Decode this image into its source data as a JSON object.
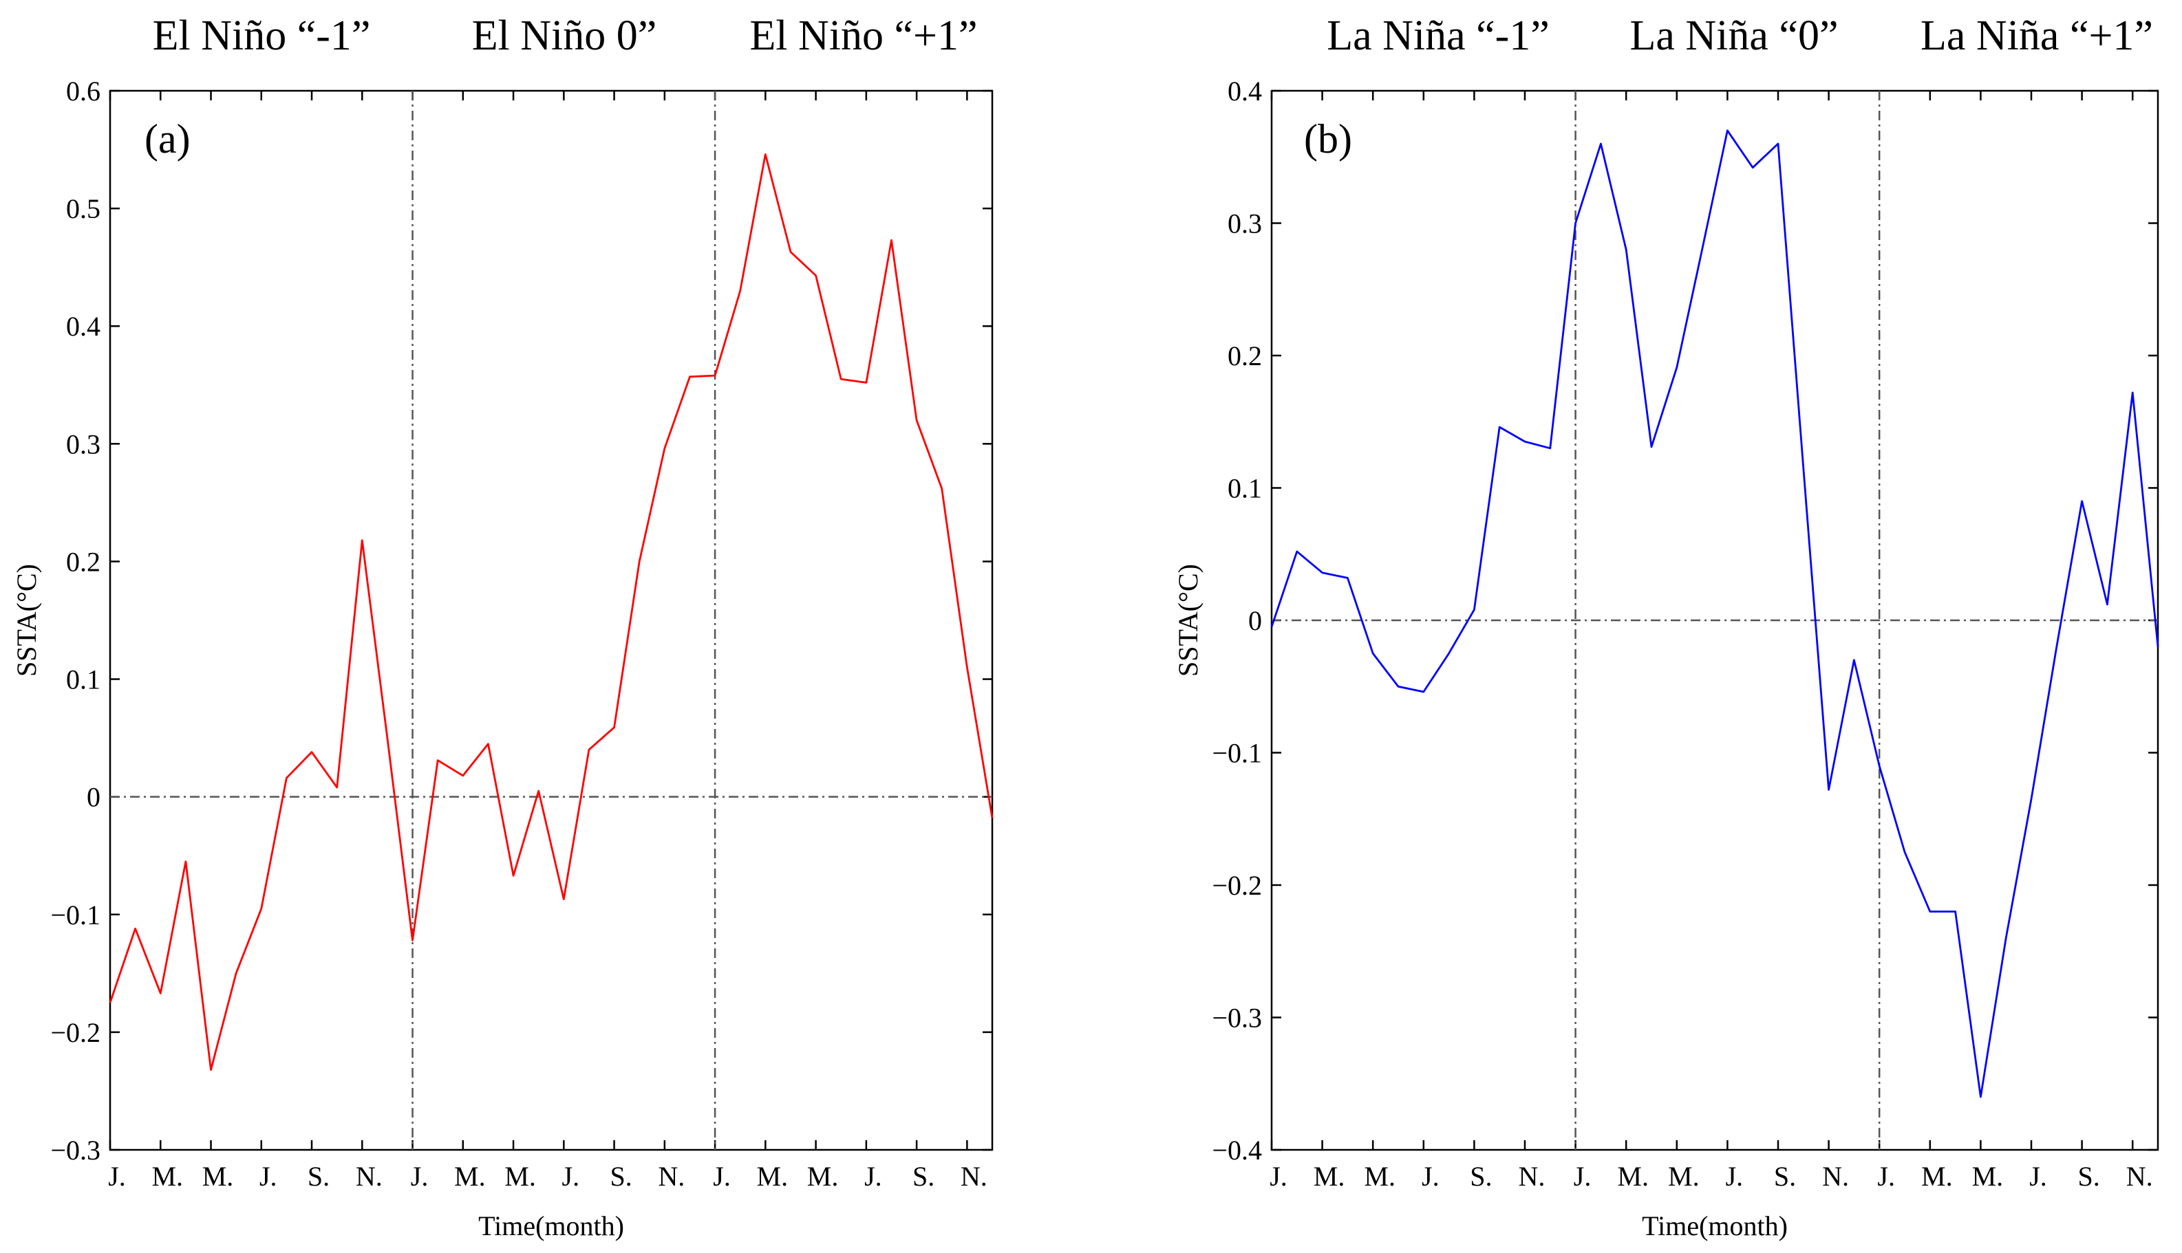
{
  "chart_data": [
    {
      "type": "line",
      "panel_label": "(a)",
      "phase_labels": [
        "El Niño “-1”",
        "El Niño 0”",
        "El Niño “+1”"
      ],
      "xlabel": "Time(month)",
      "ylabel": "SSTA(°C)",
      "x_tick_labels": [
        "J.",
        "M.",
        "M.",
        "J.",
        "S.",
        "N.",
        "J.",
        "M.",
        "M.",
        "J.",
        "S.",
        "N.",
        "J.",
        "M.",
        "M.",
        "J.",
        "S.",
        "N."
      ],
      "y_tick_labels": [
        "−0.3",
        "−0.2",
        "−0.1",
        "0",
        "0.1",
        "0.2",
        "0.3",
        "0.4",
        "0.5",
        "0.6"
      ],
      "y_ticks": [
        -0.3,
        -0.2,
        -0.1,
        0,
        0.1,
        0.2,
        0.3,
        0.4,
        0.5,
        0.6
      ],
      "ylim": [
        -0.3,
        0.6
      ],
      "xlim": [
        0,
        35
      ],
      "phase_boundaries": [
        12,
        24
      ],
      "zero_line": true,
      "grid": false,
      "series": [
        {
          "color": "#ff0000",
          "x": [
            0,
            1,
            2,
            3,
            4,
            5,
            6,
            7,
            8,
            9,
            10,
            11,
            12,
            13,
            14,
            15,
            16,
            17,
            18,
            19,
            20,
            21,
            22,
            23,
            24,
            25,
            26,
            27,
            28,
            29,
            30,
            31,
            32,
            33,
            34,
            35
          ],
          "values": [
            -0.175,
            -0.112,
            -0.167,
            -0.055,
            -0.232,
            -0.15,
            -0.095,
            0.016,
            0.038,
            0.008,
            0.218,
            0.05,
            -0.122,
            0.031,
            0.018,
            0.045,
            -0.067,
            0.005,
            -0.087,
            0.04,
            0.059,
            0.2,
            0.296,
            0.357,
            0.358,
            0.43,
            0.546,
            0.463,
            0.443,
            0.355,
            0.352,
            0.473,
            0.32,
            0.262,
            0.11,
            -0.018
          ]
        }
      ]
    },
    {
      "type": "line",
      "panel_label": "(b)",
      "phase_labels": [
        "La Niña “-1”",
        "La Niña “0”",
        "La Niña “+1”"
      ],
      "xlabel": "Time(month)",
      "ylabel": "SSTA(°C)",
      "x_tick_labels": [
        "J.",
        "M.",
        "M.",
        "J.",
        "S.",
        "N.",
        "J.",
        "M.",
        "M.",
        "J.",
        "S.",
        "N.",
        "J.",
        "M.",
        "M.",
        "J.",
        "S.",
        "N."
      ],
      "y_tick_labels": [
        "−0.4",
        "−0.3",
        "−0.2",
        "−0.1",
        "0",
        "0.1",
        "0.2",
        "0.3",
        "0.4"
      ],
      "y_ticks": [
        -0.4,
        -0.3,
        -0.2,
        -0.1,
        0,
        0.1,
        0.2,
        0.3,
        0.4
      ],
      "ylim": [
        -0.4,
        0.4
      ],
      "xlim": [
        0,
        35
      ],
      "phase_boundaries": [
        12,
        24
      ],
      "zero_line": true,
      "grid": false,
      "series": [
        {
          "color": "#0000ff",
          "x": [
            0,
            1,
            2,
            3,
            4,
            5,
            6,
            7,
            8,
            9,
            10,
            11,
            12,
            13,
            14,
            15,
            16,
            17,
            18,
            19,
            20,
            21,
            22,
            23,
            24,
            25,
            26,
            27,
            28,
            29,
            30,
            31,
            32,
            33,
            34,
            35
          ],
          "values": [
            -0.005,
            0.052,
            0.036,
            0.032,
            -0.025,
            -0.05,
            -0.054,
            -0.025,
            0.008,
            0.146,
            0.135,
            0.13,
            0.3,
            0.36,
            0.28,
            0.131,
            0.191,
            0.28,
            0.37,
            0.342,
            0.36,
            0.115,
            -0.128,
            -0.03,
            -0.11,
            -0.175,
            -0.22,
            -0.22,
            -0.36,
            -0.24,
            -0.135,
            -0.02,
            0.09,
            0.012,
            0.172,
            -0.02
          ]
        }
      ]
    }
  ]
}
